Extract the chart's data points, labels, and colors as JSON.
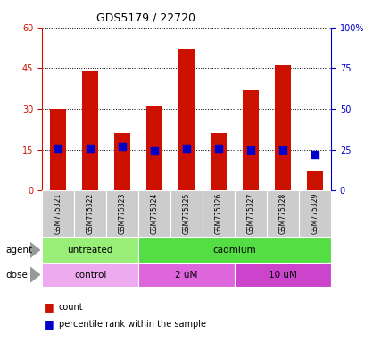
{
  "title": "GDS5179 / 22720",
  "samples": [
    "GSM775321",
    "GSM775322",
    "GSM775323",
    "GSM775324",
    "GSM775325",
    "GSM775326",
    "GSM775327",
    "GSM775328",
    "GSM775329"
  ],
  "count_values": [
    30,
    44,
    21,
    31,
    52,
    21,
    37,
    46,
    7
  ],
  "percentile_values": [
    26,
    26,
    27,
    24,
    26,
    26,
    25,
    25,
    22
  ],
  "left_ylim": [
    0,
    60
  ],
  "right_ylim": [
    0,
    100
  ],
  "left_yticks": [
    0,
    15,
    30,
    45,
    60
  ],
  "right_yticks": [
    0,
    25,
    50,
    75,
    100
  ],
  "right_yticklabels": [
    "0",
    "25",
    "50",
    "75",
    "100%"
  ],
  "bar_color": "#cc1100",
  "dot_color": "#0000cc",
  "grid_color": "#000000",
  "agent_untreated_color": "#99ee77",
  "agent_cadmium_color": "#55dd44",
  "dose_control_color": "#eeaaee",
  "dose_2um_color": "#dd66dd",
  "dose_10um_color": "#cc44cc",
  "agent_groups": [
    {
      "label": "untreated",
      "start": 0,
      "end": 3
    },
    {
      "label": "cadmium",
      "start": 3,
      "end": 9
    }
  ],
  "dose_groups": [
    {
      "label": "control",
      "start": 0,
      "end": 3
    },
    {
      "label": "2 uM",
      "start": 3,
      "end": 6
    },
    {
      "label": "10 uM",
      "start": 6,
      "end": 9
    }
  ],
  "legend_count_label": "count",
  "legend_pct_label": "percentile rank within the sample",
  "right_axis_color": "#0000cc",
  "tick_label_color_left": "#cc1100",
  "tick_label_color_right": "#0000cc",
  "bar_width": 0.5,
  "dot_size": 30,
  "sample_box_color": "#cccccc",
  "title_fontsize": 9,
  "tick_fontsize": 7,
  "label_fontsize": 7.5,
  "legend_fontsize": 7,
  "annotation_fontsize": 7.5
}
